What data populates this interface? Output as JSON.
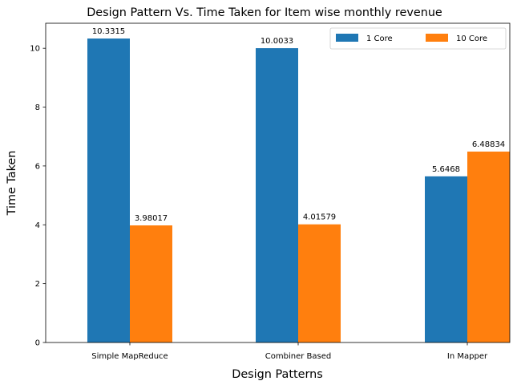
{
  "chart_data": {
    "type": "bar",
    "title": "Design Pattern Vs. Time Taken for Item wise monthly revenue",
    "xlabel": "Design Patterns",
    "ylabel": "Time Taken",
    "categories": [
      "Simple MapReduce",
      "Combiner Based",
      "In Mapper"
    ],
    "series": [
      {
        "name": "1 Core",
        "values": [
          10.3315,
          10.0033,
          5.6468
        ],
        "labels": [
          "10.3315",
          "10.0033",
          "5.6468"
        ],
        "color": "#1f77b4"
      },
      {
        "name": "10 Core",
        "values": [
          3.98017,
          4.01579,
          6.48834
        ],
        "labels": [
          "3.98017",
          "4.01579",
          "6.48834"
        ],
        "color": "#ff7f0e"
      }
    ],
    "ylim": [
      0,
      10.85
    ],
    "yticks": [
      0,
      2,
      4,
      6,
      8,
      10
    ],
    "ytick_labels": [
      "0",
      "2",
      "4",
      "6",
      "8",
      "10"
    ],
    "grid": false,
    "legend": "top-right",
    "legend_columns": 2
  }
}
